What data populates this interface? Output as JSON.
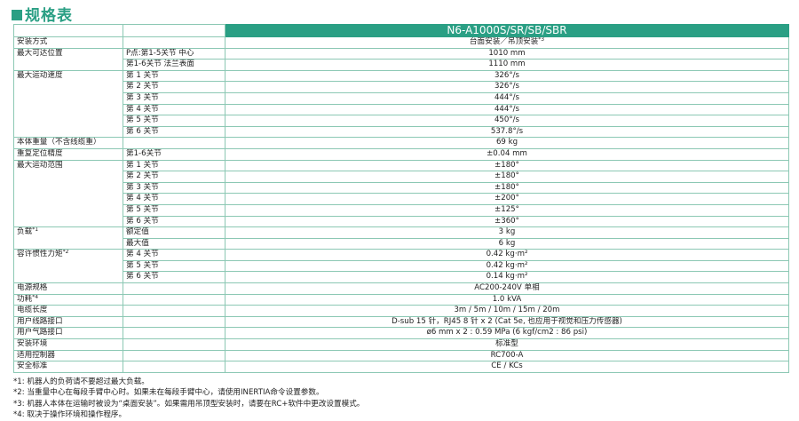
{
  "title": "规格表",
  "table": {
    "header": "N6-A1000S/SR/SB/SBR",
    "groups": [
      {
        "label": "安装方式",
        "rows": [
          {
            "value": "台面安装／吊顶安装",
            "note": "*3"
          }
        ]
      },
      {
        "label": "最大可达位置",
        "rows": [
          {
            "sub": "P点:第1-5关节 中心",
            "value": "1010 mm"
          },
          {
            "sub": "第1-6关节 法兰表面",
            "value": "1110 mm"
          }
        ]
      },
      {
        "label": "最大运动速度",
        "rows": [
          {
            "sub": "第 1 关节",
            "value": "326°/s"
          },
          {
            "sub": "第 2 关节",
            "value": "326°/s"
          },
          {
            "sub": "第 3 关节",
            "value": "444°/s"
          },
          {
            "sub": "第 4 关节",
            "value": "444°/s"
          },
          {
            "sub": "第 5 关节",
            "value": "450°/s"
          },
          {
            "sub": "第 6 关节",
            "value": "537.8°/s"
          }
        ]
      },
      {
        "label": "本体重量（不含线缆重）",
        "rows": [
          {
            "value": "69 kg"
          }
        ]
      },
      {
        "label": "重复定位精度",
        "rows": [
          {
            "sub": "第1-6关节",
            "value": "±0.04 mm"
          }
        ]
      },
      {
        "label": "最大运动范围",
        "rows": [
          {
            "sub": "第 1 关节",
            "value": "±180°"
          },
          {
            "sub": "第 2 关节",
            "value": "±180°"
          },
          {
            "sub": "第 3 关节",
            "value": "±180°"
          },
          {
            "sub": "第 4 关节",
            "value": "±200°"
          },
          {
            "sub": "第 5 关节",
            "value": "±125°"
          },
          {
            "sub": "第 6 关节",
            "value": "±360°"
          }
        ]
      },
      {
        "label": "负载",
        "note": "*1",
        "rows": [
          {
            "sub": "额定值",
            "value": "3 kg"
          },
          {
            "sub": "最大值",
            "value": "6 kg"
          }
        ]
      },
      {
        "label": "容许惯性力矩",
        "note": "*2",
        "rows": [
          {
            "sub": "第 4 关节",
            "value": "0.42 kg·m²"
          },
          {
            "sub": "第 5 关节",
            "value": "0.42 kg·m²"
          },
          {
            "sub": "第 6 关节",
            "value": "0.14 kg·m²"
          }
        ]
      },
      {
        "label": "电源规格",
        "rows": [
          {
            "value": "AC200-240V 单相"
          }
        ]
      },
      {
        "label": "功耗",
        "note": "*4",
        "rows": [
          {
            "value": "1.0 kVA"
          }
        ]
      },
      {
        "label": "电缆长度",
        "rows": [
          {
            "value": "3m / 5m / 10m / 15m / 20m"
          }
        ]
      },
      {
        "label": "用户线路接口",
        "rows": [
          {
            "value": "D-sub 15 针，RJ45 8 针 x 2 (Cat 5e, 也应用于视觉和压力传感器)"
          }
        ]
      },
      {
        "label": "用户气路接口",
        "rows": [
          {
            "value": "ø6 mm x 2 : 0.59 MPa (6 kgf/cm2 : 86 psi)"
          }
        ]
      },
      {
        "label": "安装环境",
        "rows": [
          {
            "value": "标准型"
          }
        ]
      },
      {
        "label": "适用控制器",
        "rows": [
          {
            "value": "RC700-A"
          }
        ]
      },
      {
        "label": "安全标准",
        "rows": [
          {
            "value": "CE / KCs"
          }
        ]
      }
    ]
  },
  "footnotes": [
    "*1: 机器人的负荷请不要超过最大负载。",
    "*2: 当重量中心在每段手臂中心时。如果未在每段手臂中心，请使用INERTIA命令设置参数。",
    "*3: 机器人本体在运输时被设为“桌面安装”。如果需用吊顶型安装时，请要在RC+软件中更改设置模式。",
    "*4: 取决于操作环境和操作程序。"
  ]
}
